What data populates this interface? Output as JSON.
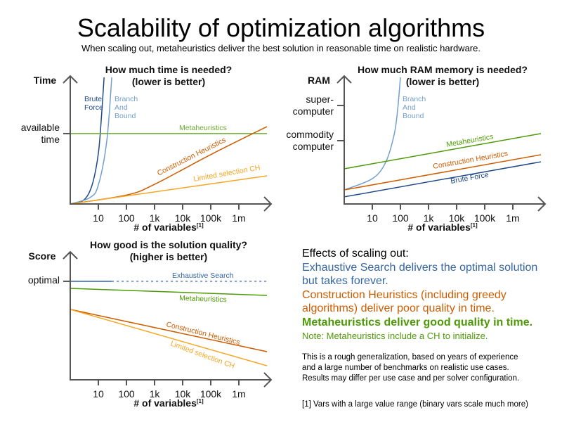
{
  "title": "Scalability of optimization algorithms",
  "subtitle": "When scaling out, metaheuristics deliver the best solution in reasonable time on realistic hardware.",
  "colors": {
    "brute_force": "#204a87",
    "branch_and_bound": "#729fcf",
    "exhaustive_search": "#3465a4",
    "metaheuristics": "#4e9a06",
    "construction_heuristics": "#ce5c00",
    "limited_selection_ch": "#f5a623"
  },
  "chart_data": [
    {
      "type": "line",
      "title": "How much time is needed?",
      "subtitle": "(lower is better)",
      "ylabel": "Time",
      "xlabel": "# of variables",
      "xlabel_note": "[1]",
      "x_scale": "log",
      "xlim": [
        1,
        10000000
      ],
      "x_ticks": [
        10,
        100,
        1000,
        10000,
        100000,
        1000000
      ],
      "x_tick_labels": [
        "10",
        "100",
        "1k",
        "10k",
        "100k",
        "1m"
      ],
      "y_levels": [
        {
          "label_lines": [
            "available",
            "time"
          ],
          "level": 0.556
        }
      ],
      "grid": false,
      "series": [
        {
          "name": "Brute Force",
          "label_lines": [
            "Brute",
            "Force"
          ],
          "color": "#204a87",
          "points": [
            [
              1,
              0
            ],
            [
              3,
              0.03
            ],
            [
              6,
              0.15
            ],
            [
              10,
              0.4
            ],
            [
              13,
              0.7
            ],
            [
              16,
              1
            ]
          ]
        },
        {
          "name": "Branch And Bound",
          "label_lines": [
            "Branch",
            "And",
            "Bound"
          ],
          "color": "#729fcf",
          "points": [
            [
              1,
              0
            ],
            [
              5,
              0.05
            ],
            [
              10,
              0.15
            ],
            [
              20,
              0.5
            ],
            [
              30,
              1
            ]
          ]
        },
        {
          "name": "Metaheuristics",
          "color": "#6aab2e",
          "points": [
            [
              1,
              0.556
            ],
            [
              10000000,
              0.556
            ]
          ]
        },
        {
          "name": "Construction Heuristics",
          "color": "#ce5c00",
          "points": [
            [
              1,
              0
            ],
            [
              100,
              0.07
            ],
            [
              1000,
              0.155
            ],
            [
              100000,
              0.39
            ],
            [
              10000000,
              0.611
            ]
          ]
        },
        {
          "name": "Limited selection CH",
          "color": "#f5a623",
          "points": [
            [
              1,
              0
            ],
            [
              10000000,
              0.222
            ]
          ]
        }
      ]
    },
    {
      "type": "line",
      "title": "How much RAM memory is needed?",
      "subtitle": "(lower is better)",
      "ylabel": "RAM",
      "xlabel": "# of variables",
      "xlabel_note": "[1]",
      "x_scale": "log",
      "xlim": [
        1,
        10000000
      ],
      "x_ticks": [
        10,
        100,
        1000,
        10000,
        100000,
        1000000
      ],
      "x_tick_labels": [
        "10",
        "100",
        "1k",
        "10k",
        "100k",
        "1m"
      ],
      "y_levels": [
        {
          "label_lines": [
            "super-",
            "computer"
          ],
          "level": 0.778
        },
        {
          "label_lines": [
            "commodity",
            "computer"
          ],
          "level": 0.5
        }
      ],
      "grid": false,
      "series": [
        {
          "name": "Branch And Bound",
          "label_lines": [
            "Branch",
            "And",
            "Bound"
          ],
          "color": "#729fcf",
          "points": [
            [
              1,
              0.111
            ],
            [
              10,
              0.2
            ],
            [
              30,
              0.33
            ],
            [
              60,
              0.55
            ],
            [
              80,
              0.75
            ],
            [
              100,
              1
            ]
          ]
        },
        {
          "name": "Metaheuristics",
          "color": "#4e9a06",
          "points": [
            [
              1,
              0.278
            ],
            [
              10000000,
              0.556
            ]
          ]
        },
        {
          "name": "Construction Heuristics",
          "color": "#ce5c00",
          "points": [
            [
              1,
              0.111
            ],
            [
              10000000,
              0.389
            ]
          ]
        },
        {
          "name": "Brute Force",
          "color": "#204a87",
          "points": [
            [
              1,
              0.056
            ],
            [
              10000000,
              0.333
            ]
          ]
        }
      ]
    },
    {
      "type": "line",
      "title": "How good is the solution quality?",
      "subtitle": "(higher is better)",
      "ylabel": "Score",
      "xlabel": "# of variables",
      "xlabel_note": "[1]",
      "x_scale": "log",
      "xlim": [
        1,
        10000000
      ],
      "x_ticks": [
        10,
        100,
        1000,
        10000,
        100000,
        1000000
      ],
      "x_tick_labels": [
        "10",
        "100",
        "1k",
        "10k",
        "100k",
        "1m"
      ],
      "y_levels": [
        {
          "label_lines": [
            "optimal"
          ],
          "level": 0.778
        }
      ],
      "grid": false,
      "series": [
        {
          "name": "Exhaustive Search",
          "color": "#3465a4",
          "points": [
            [
              1,
              0.778
            ],
            [
              30,
              0.778
            ]
          ],
          "dotted_points": [
            [
              30,
              0.778
            ],
            [
              10000000,
              0.778
            ]
          ]
        },
        {
          "name": "Metaheuristics",
          "color": "#4e9a06",
          "points": [
            [
              1,
              0.722
            ],
            [
              10000000,
              0.667
            ]
          ]
        },
        {
          "name": "Construction Heuristics",
          "color": "#ce5c00",
          "points": [
            [
              1,
              0.556
            ],
            [
              10000000,
              0.222
            ]
          ]
        },
        {
          "name": "Limited selection CH",
          "color": "#f5a623",
          "points": [
            [
              1,
              0.556
            ],
            [
              10000000,
              0.111
            ]
          ]
        }
      ]
    }
  ],
  "effects": {
    "heading": "Effects of scaling out:",
    "exhaustive": [
      "Exhaustive Search delivers the optimal solution",
      "but takes forever."
    ],
    "construction": [
      "Construction Heuristics (including greedy",
      "algorithms) deliver poor quality in time."
    ],
    "metaheuristics": "Metaheuristics deliver good quality in time.",
    "note": "Note: Metaheuristics include a CH to initialize.",
    "disclaimer": [
      "This is a rough generalization, based on years of experience",
      "and a large number of benchmarks on realistic use cases.",
      "Results may differ per use case and per solver configuration."
    ],
    "footnote": "[1] Vars with a large value range (binary vars scale much more)"
  }
}
